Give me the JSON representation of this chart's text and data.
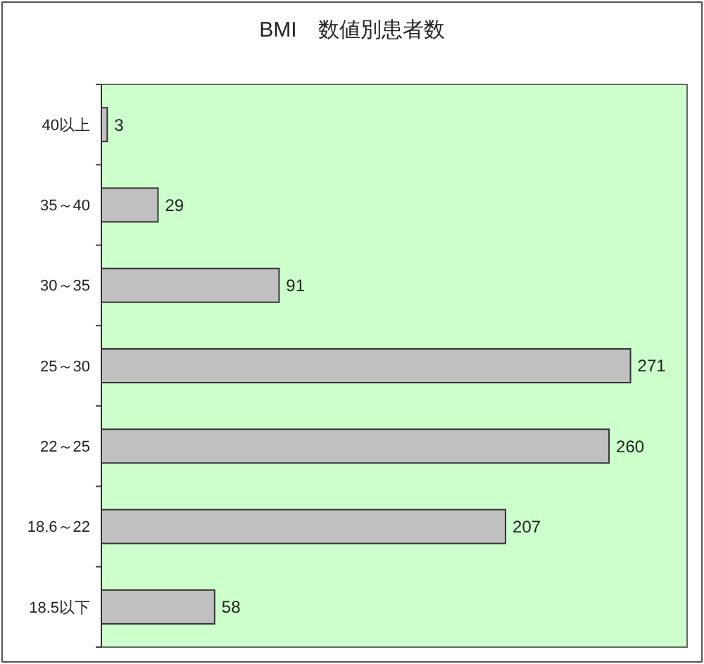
{
  "chart_data": {
    "type": "bar",
    "orientation": "horizontal",
    "title": "BMI　数値別患者数",
    "categories": [
      "40以上",
      "35～40",
      "30～35",
      "25～30",
      "22～25",
      "18.6～22",
      "18.5以下"
    ],
    "values": [
      3,
      29,
      91,
      271,
      260,
      207,
      58
    ],
    "color": "#c0c0c0",
    "xlim": [
      0,
      300
    ],
    "data_labels": true
  }
}
